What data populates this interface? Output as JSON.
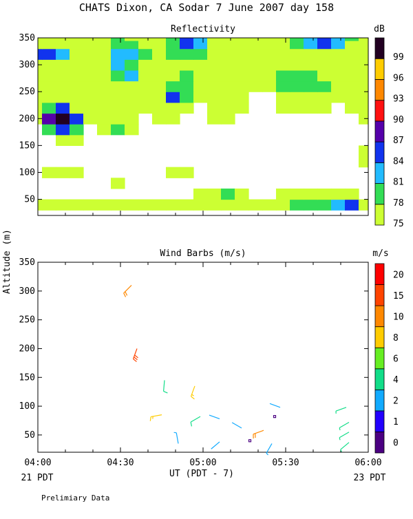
{
  "header": {
    "title": "CHATS Dixon, CA  Sodar   7 June 2007  day 158"
  },
  "axis": {
    "ylabel": "Altitude (m)",
    "xlabel": "UT  (PDT - 7)",
    "left_date": "21 PDT",
    "right_date": "23 PDT",
    "footnote": "Prelimiary Data"
  },
  "chart_data": [
    {
      "type": "heatmap",
      "title": "Reflectivity",
      "colorbar_unit": "dB",
      "x_ticks": [
        "04:00",
        "04:30",
        "05:00",
        "05:30",
        "06:00"
      ],
      "xlim": [
        "04:00",
        "06:00"
      ],
      "y_ticks": [
        50,
        100,
        150,
        200,
        250,
        300,
        350
      ],
      "ylim": [
        20,
        350
      ],
      "levels": [
        75,
        78,
        81,
        84,
        87,
        90,
        93,
        96,
        99
      ],
      "level_colors": [
        "#ccff33",
        "#33dd55",
        "#22bbff",
        "#1133ee",
        "#5500aa",
        "#ff1111",
        "#ff8800",
        "#ffcc00",
        "#220022"
      ],
      "x": [
        "03:59",
        "04:04",
        "04:09",
        "04:14",
        "04:19",
        "04:24",
        "04:29",
        "04:34",
        "04:39",
        "04:44",
        "04:49",
        "04:54",
        "04:59",
        "05:04",
        "05:09",
        "05:14",
        "05:19",
        "05:24",
        "05:29",
        "05:34",
        "05:39",
        "05:44",
        "05:49",
        "05:54",
        "05:59"
      ],
      "y": [
        40,
        60,
        80,
        100,
        120,
        140,
        160,
        180,
        200,
        220,
        240,
        260,
        280,
        300,
        320,
        340,
        350
      ],
      "z": [
        [
          76,
          75,
          75,
          75,
          75,
          75,
          75,
          75,
          75,
          75,
          75,
          75,
          75,
          76,
          77,
          76,
          75,
          76,
          77,
          78,
          79,
          80,
          83,
          86,
          75
        ],
        [
          74,
          74,
          74,
          74,
          74,
          74,
          74,
          74,
          74,
          74,
          74,
          74,
          75,
          76,
          78,
          75,
          74,
          74,
          75,
          76,
          77,
          77,
          76,
          76,
          74
        ],
        [
          74,
          74,
          74,
          74,
          74,
          74,
          75,
          74,
          74,
          74,
          74,
          74,
          74,
          74,
          74,
          74,
          74,
          74,
          74,
          74,
          74,
          74,
          74,
          74,
          74
        ],
        [
          74,
          75,
          76,
          75,
          74,
          74,
          74,
          74,
          74,
          74,
          75,
          75,
          74,
          74,
          74,
          74,
          74,
          74,
          74,
          74,
          74,
          74,
          74,
          74,
          74
        ],
        [
          74,
          74,
          74,
          74,
          74,
          74,
          74,
          74,
          74,
          74,
          74,
          74,
          74,
          74,
          74,
          74,
          74,
          74,
          74,
          74,
          74,
          74,
          74,
          74,
          75
        ],
        [
          74,
          74,
          74,
          74,
          74,
          74,
          74,
          74,
          74,
          74,
          74,
          74,
          74,
          74,
          74,
          74,
          74,
          74,
          74,
          74,
          74,
          74,
          74,
          74,
          75
        ],
        [
          74,
          74,
          76,
          76,
          74,
          74,
          74,
          74,
          74,
          74,
          74,
          74,
          74,
          74,
          74,
          74,
          74,
          74,
          74,
          74,
          74,
          74,
          74,
          74,
          74
        ],
        [
          74,
          80,
          86,
          78,
          74,
          75,
          78,
          76,
          74,
          74,
          74,
          74,
          74,
          74,
          74,
          74,
          74,
          74,
          74,
          74,
          74,
          74,
          74,
          74,
          74
        ],
        [
          75,
          88,
          100,
          86,
          76,
          76,
          75,
          75,
          74,
          75,
          75,
          74,
          74,
          75,
          75,
          74,
          74,
          74,
          74,
          74,
          74,
          74,
          74,
          74,
          75
        ],
        [
          76,
          78,
          86,
          76,
          75,
          75,
          76,
          76,
          75,
          75,
          76,
          75,
          74,
          75,
          75,
          75,
          74,
          74,
          75,
          75,
          75,
          75,
          74,
          75,
          75
        ],
        [
          75,
          75,
          75,
          75,
          75,
          75,
          75,
          75,
          75,
          75,
          84,
          78,
          75,
          75,
          75,
          75,
          74,
          74,
          75,
          76,
          77,
          76,
          75,
          75,
          75
        ],
        [
          76,
          75,
          75,
          75,
          75,
          75,
          75,
          75,
          75,
          75,
          80,
          78,
          76,
          75,
          75,
          75,
          75,
          76,
          78,
          80,
          80,
          78,
          76,
          75,
          75
        ],
        [
          75,
          75,
          75,
          75,
          75,
          77,
          80,
          82,
          77,
          75,
          76,
          78,
          77,
          75,
          75,
          75,
          75,
          77,
          79,
          80,
          78,
          76,
          75,
          75,
          75
        ],
        [
          75,
          75,
          75,
          75,
          75,
          76,
          82,
          79,
          75,
          75,
          75,
          75,
          75,
          75,
          75,
          75,
          75,
          75,
          75,
          75,
          75,
          75,
          75,
          75,
          75
        ],
        [
          84,
          84,
          82,
          77,
          75,
          77,
          82,
          83,
          78,
          75,
          78,
          80,
          79,
          76,
          75,
          75,
          75,
          75,
          75,
          75,
          75,
          75,
          75,
          75,
          75
        ],
        [
          76,
          76,
          75,
          75,
          75,
          76,
          80,
          78,
          75,
          75,
          80,
          84,
          81,
          77,
          75,
          75,
          75,
          75,
          75,
          78,
          83,
          85,
          82,
          77,
          75
        ],
        [
          76,
          76,
          75,
          75,
          75,
          76,
          78,
          77,
          75,
          75,
          80,
          84,
          81,
          77,
          75,
          75,
          75,
          75,
          75,
          78,
          83,
          86,
          83,
          78,
          75
        ]
      ]
    },
    {
      "type": "scatter",
      "title": "Wind Barbs (m/s)",
      "colorbar_unit": "m/s",
      "x_ticks": [
        "04:00",
        "04:30",
        "05:00",
        "05:30",
        "06:00"
      ],
      "xlim": [
        "04:00",
        "06:00"
      ],
      "y_ticks": [
        50,
        100,
        150,
        200,
        250,
        300,
        350
      ],
      "ylim": [
        20,
        350
      ],
      "speed_levels": [
        0,
        1,
        2,
        4,
        6,
        8,
        10,
        15,
        20
      ],
      "speed_colors": [
        "#4b0082",
        "#2200ff",
        "#11aaff",
        "#11dd88",
        "#66ee22",
        "#ffcc00",
        "#ff8800",
        "#ff4400",
        "#ff0000"
      ],
      "barbs": [
        {
          "t": "04:34",
          "alt": 310,
          "speed": 10,
          "dir": 225
        },
        {
          "t": "04:36",
          "alt": 200,
          "speed": 17,
          "dir": 200
        },
        {
          "t": "04:46",
          "alt": 145,
          "speed": 5,
          "dir": 185
        },
        {
          "t": "04:51",
          "alt": 35,
          "speed": 3,
          "dir": 350
        },
        {
          "t": "04:45",
          "alt": 85,
          "speed": 9,
          "dir": 260
        },
        {
          "t": "04:57",
          "alt": 135,
          "speed": 9,
          "dir": 200
        },
        {
          "t": "04:59",
          "alt": 82,
          "speed": 5,
          "dir": 240
        },
        {
          "t": "05:06",
          "alt": 78,
          "speed": 2,
          "dir": 290
        },
        {
          "t": "05:06",
          "alt": 38,
          "speed": 2,
          "dir": 230
        },
        {
          "t": "05:14",
          "alt": 62,
          "speed": 2,
          "dir": 300
        },
        {
          "t": "05:17",
          "alt": 40,
          "speed": 0.5,
          "dir": 0
        },
        {
          "t": "05:22",
          "alt": 58,
          "speed": 10,
          "dir": 250
        },
        {
          "t": "05:25",
          "alt": 35,
          "speed": 3,
          "dir": 210
        },
        {
          "t": "05:26",
          "alt": 82,
          "speed": 0.5,
          "dir": 0
        },
        {
          "t": "05:28",
          "alt": 98,
          "speed": 2,
          "dir": 290
        },
        {
          "t": "05:52",
          "alt": 98,
          "speed": 4,
          "dir": 250
        },
        {
          "t": "05:53",
          "alt": 72,
          "speed": 4,
          "dir": 240
        },
        {
          "t": "05:53",
          "alt": 55,
          "speed": 4,
          "dir": 240
        },
        {
          "t": "05:53",
          "alt": 37,
          "speed": 4,
          "dir": 230
        }
      ]
    }
  ]
}
